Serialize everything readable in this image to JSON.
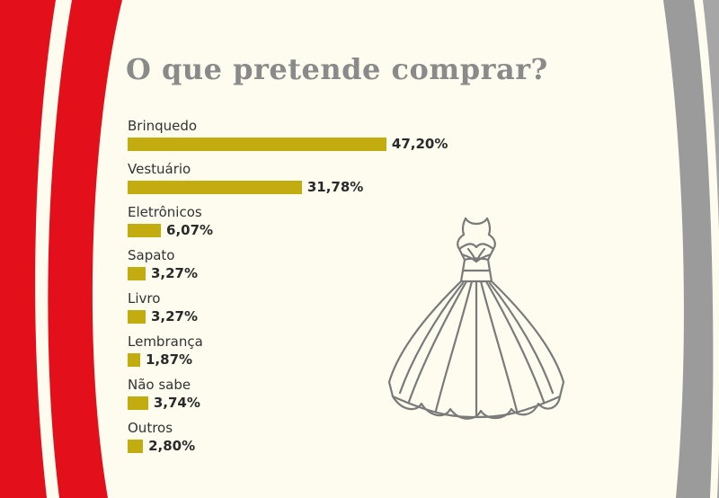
{
  "colors": {
    "background": "#fdfcef",
    "red": "#e3101b",
    "gray": "#9b9b9b",
    "bar": "#c2ac10",
    "title": "#8a8a8a"
  },
  "icons": [
    "dress-icon"
  ],
  "chart_data": {
    "type": "bar",
    "orientation": "horizontal",
    "title": "O que pretende comprar?",
    "categories": [
      "Brinquedo",
      "Vestuário",
      "Eletrônicos",
      "Sapato",
      "Livro",
      "Lembrança",
      "Não sabe",
      "Outros"
    ],
    "values": [
      47.2,
      31.78,
      6.07,
      3.27,
      3.27,
      1.87,
      3.74,
      2.8
    ],
    "value_labels": [
      "47,20%",
      "31,78%",
      "6,07%",
      "3,27%",
      "3,27%",
      "1,87%",
      "3,74%",
      "2,80%"
    ],
    "unit": "%",
    "grid": false,
    "legend": "none"
  }
}
